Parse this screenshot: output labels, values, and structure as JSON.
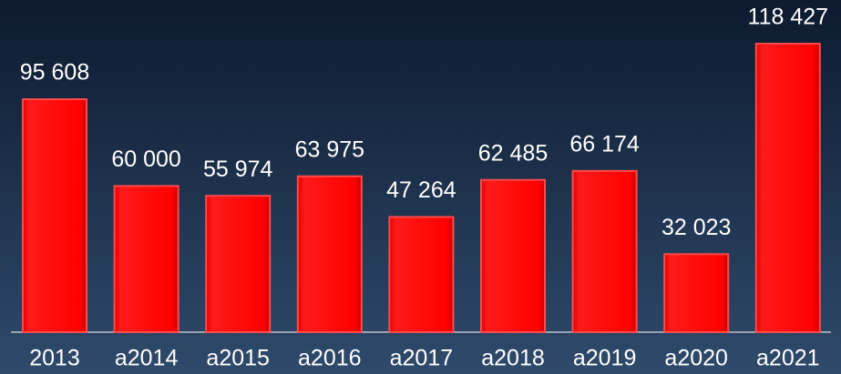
{
  "chart_data": {
    "type": "bar",
    "categories": [
      "2013",
      "a2014",
      "a2015",
      "a2016",
      "a2017",
      "a2018",
      "a2019",
      "a2020",
      "a2021"
    ],
    "values": [
      95608,
      60000,
      55974,
      63975,
      47264,
      62485,
      66174,
      32023,
      118427
    ],
    "value_labels": [
      "95 608",
      "60 000",
      "55 974",
      "63 975",
      "47 264",
      "62 485",
      "66 174",
      "32 023",
      "118 427"
    ],
    "color": "#ff0000"
  }
}
